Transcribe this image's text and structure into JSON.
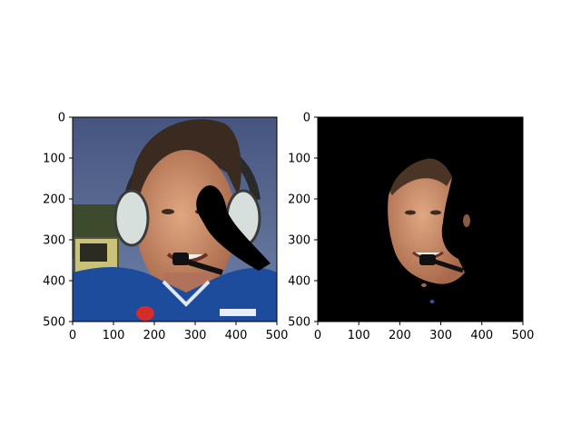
{
  "chart_data": [
    {
      "type": "image",
      "title": "",
      "xlabel": "",
      "ylabel": "",
      "xlim": [
        0,
        500
      ],
      "ylim": [
        500,
        0
      ],
      "xticks": [
        0,
        100,
        200,
        300,
        400,
        500
      ],
      "yticks": [
        0,
        100,
        200,
        300,
        400,
        500
      ],
      "image_content": "photo-face-with-black-occlusion",
      "grid": false,
      "colors": {
        "background": "#ffffff",
        "axis": "#000000",
        "occluder": "#000000"
      }
    },
    {
      "type": "image",
      "title": "",
      "xlabel": "",
      "ylabel": "",
      "xlim": [
        0,
        500
      ],
      "ylim": [
        500,
        0
      ],
      "xticks": [
        0,
        100,
        200,
        300,
        400,
        500
      ],
      "yticks": [
        0,
        100,
        200,
        300,
        400,
        500
      ],
      "image_content": "segmented-face-on-black",
      "grid": false,
      "colors": {
        "background": "#000000",
        "axis": "#000000",
        "skin": "#c98e6c"
      }
    }
  ]
}
